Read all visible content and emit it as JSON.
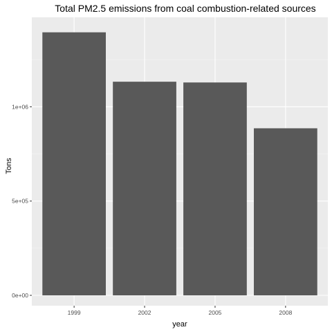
{
  "chart_data": {
    "type": "bar",
    "title": "Total PM2.5 emissions from coal combustion-related sources",
    "xlabel": "year",
    "ylabel": "Tons",
    "categories": [
      "1999",
      "2002",
      "2005",
      "2008"
    ],
    "values": [
      1395000,
      1133000,
      1129000,
      886000
    ],
    "ylim": [
      0,
      1460000
    ],
    "yticks": [
      0,
      500000,
      1000000
    ],
    "ytick_labels": [
      "0e+00",
      "5e+05",
      "1e+06"
    ],
    "grid": true,
    "colors": {
      "bar": "#595959",
      "panel": "#ebebeb",
      "grid_major": "#ffffff",
      "tick": "#333333"
    }
  }
}
